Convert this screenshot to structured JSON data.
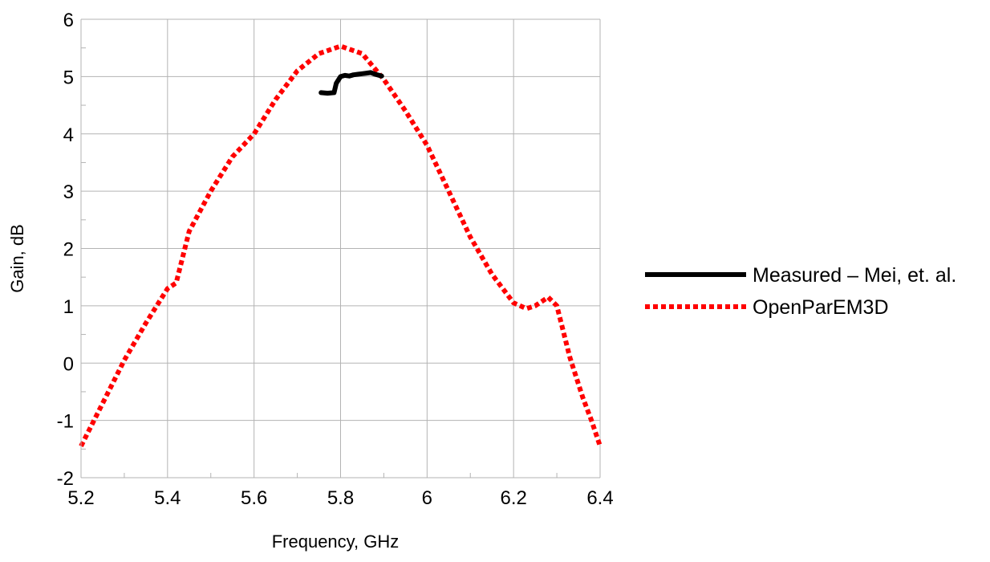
{
  "chart_data": {
    "type": "line",
    "xlabel": "Frequency, GHz",
    "ylabel": "Gain, dB",
    "xlim": [
      5.2,
      6.4
    ],
    "ylim": [
      -2,
      6
    ],
    "x_ticks": [
      5.2,
      5.4,
      5.6,
      5.8,
      6,
      6.2,
      6.4
    ],
    "x_tick_labels": [
      "5.2",
      "5.4",
      "5.6",
      "5.8",
      "6",
      "6.2",
      "6.4"
    ],
    "y_ticks": [
      -2,
      -1,
      0,
      1,
      2,
      3,
      4,
      5,
      6
    ],
    "y_tick_labels": [
      "-2",
      "-1",
      "0",
      "1",
      "2",
      "3",
      "4",
      "5",
      "6"
    ],
    "grid": true,
    "legend_position": "right",
    "series": [
      {
        "name": "Measured – Mei, et. al.",
        "color": "#000000",
        "style": "solid",
        "x": [
          5.755,
          5.77,
          5.785,
          5.79,
          5.8,
          5.81,
          5.82,
          5.83,
          5.84,
          5.85,
          5.86,
          5.87,
          5.88,
          5.895
        ],
        "y": [
          4.72,
          4.71,
          4.72,
          4.88,
          5.0,
          5.02,
          5.01,
          5.03,
          5.04,
          5.05,
          5.06,
          5.07,
          5.04,
          5.01
        ]
      },
      {
        "name": "OpenParEM3D",
        "color": "#ff0000",
        "style": "dotted",
        "x": [
          5.2,
          5.25,
          5.3,
          5.35,
          5.4,
          5.42,
          5.45,
          5.5,
          5.55,
          5.6,
          5.65,
          5.7,
          5.75,
          5.8,
          5.85,
          5.9,
          5.95,
          6.0,
          6.05,
          6.1,
          6.15,
          6.2,
          6.23,
          6.25,
          6.28,
          6.3,
          6.33,
          6.36,
          6.38,
          6.4
        ],
        "y": [
          -1.45,
          -0.7,
          0.05,
          0.7,
          1.3,
          1.4,
          2.3,
          3.0,
          3.6,
          4.0,
          4.6,
          5.1,
          5.4,
          5.53,
          5.4,
          4.95,
          4.4,
          3.8,
          3.0,
          2.2,
          1.55,
          1.05,
          0.95,
          1.0,
          1.15,
          1.0,
          0.1,
          -0.6,
          -1.0,
          -1.45
        ]
      }
    ]
  }
}
